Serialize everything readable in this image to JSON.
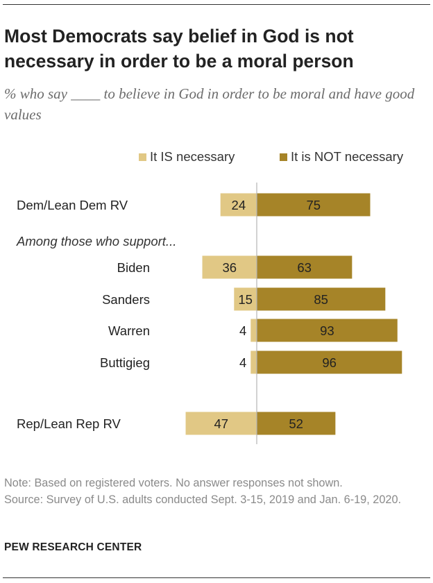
{
  "title": "Most Democrats say belief in God is not necessary in order to be a moral person",
  "subtitle": "% who say ____ to believe in God in order to be moral and have good values",
  "notes": {
    "note": "Note: Based on registered voters. No answer responses not shown.",
    "source": "Source: Survey of U.S. adults conducted Sept. 3-15, 2019 and Jan. 6-19, 2020."
  },
  "brand": "PEW RESEARCH CENTER",
  "colors": {
    "is_necessary": "#e1c885",
    "not_necessary": "#a68428",
    "axis_line": "#b5b5b5"
  },
  "chart_data": {
    "type": "bar",
    "orientation": "horizontal-diverging",
    "legend_position": "top-right",
    "group_label": "Among those who support...",
    "categories": [
      "Dem/Lean Dem RV",
      "Biden",
      "Sanders",
      "Warren",
      "Buttigieg",
      "Rep/Lean Rep RV"
    ],
    "series": [
      {
        "name": "It IS necessary",
        "values": [
          24,
          36,
          15,
          4,
          4,
          47
        ]
      },
      {
        "name": "It is NOT necessary",
        "values": [
          75,
          63,
          85,
          93,
          96,
          52
        ]
      }
    ]
  }
}
